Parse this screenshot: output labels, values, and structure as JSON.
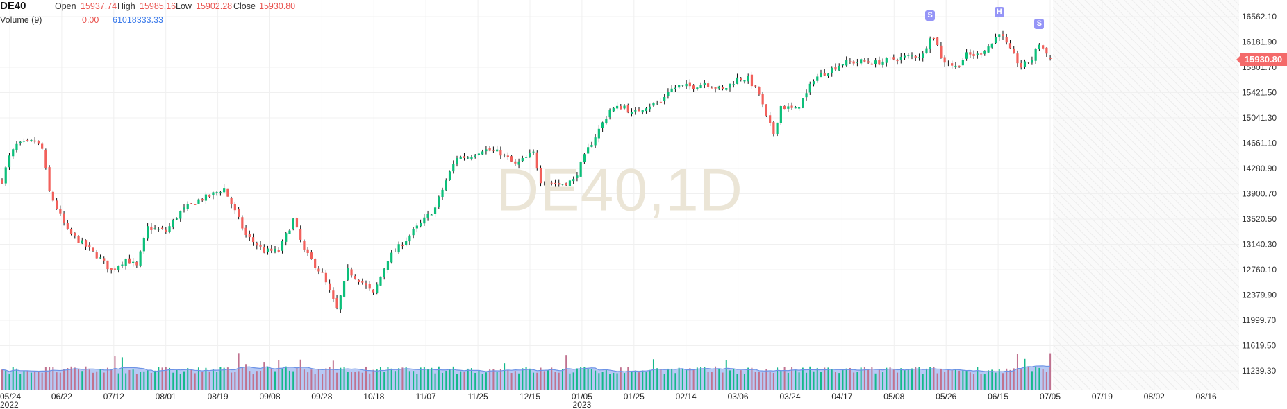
{
  "legend": {
    "symbol": "DE40",
    "open_label": "Open",
    "open": "15937.74",
    "high_label": "High",
    "high": "15985.16",
    "low_label": "Low",
    "low": "15902.28",
    "close_label": "Close",
    "close": "15930.80",
    "volume_label": "Volume (9)",
    "volume_value": "0.00",
    "volume_ma": "61018333.33"
  },
  "watermark": "DE40,1D",
  "last_price_tag": "15930.80",
  "markers": [
    {
      "label": "S",
      "day": 255,
      "price": 16279
    },
    {
      "label": "H",
      "day": 274,
      "price": 16338
    },
    {
      "label": "S",
      "day": 285,
      "price": 16161
    }
  ],
  "colors": {
    "up": "#0cbf7a",
    "down": "#f2605b",
    "vol_up": "#14b98a",
    "vol_down": "#c0728f",
    "vol_ma_fill": "#b7c9f4",
    "vol_ma_line": "#6d93e6",
    "tag": "#f46a6a",
    "marker": "#9595f7"
  },
  "chart_data": {
    "type": "candlestick",
    "title": "DE40,1D",
    "y_ticks": [
      "16562.10",
      "16181.90",
      "15801.70",
      "15421.50",
      "15041.30",
      "14661.10",
      "14280.90",
      "13900.70",
      "13520.50",
      "13140.30",
      "12760.10",
      "12379.90",
      "11999.70",
      "11619.50",
      "11239.30"
    ],
    "ylim": [
      11239.3,
      16562.1
    ],
    "x_ticks": [
      {
        "label": "05/24",
        "sub": "2022"
      },
      {
        "label": "06/22"
      },
      {
        "label": "07/12"
      },
      {
        "label": "08/01"
      },
      {
        "label": "08/19"
      },
      {
        "label": "09/08"
      },
      {
        "label": "09/28"
      },
      {
        "label": "10/18"
      },
      {
        "label": "11/07"
      },
      {
        "label": "11/25"
      },
      {
        "label": "12/15"
      },
      {
        "label": "01/05",
        "sub": "2023"
      },
      {
        "label": "01/25"
      },
      {
        "label": "02/14"
      },
      {
        "label": "03/06"
      },
      {
        "label": "03/24"
      },
      {
        "label": "04/17"
      },
      {
        "label": "05/08"
      },
      {
        "label": "05/26"
      },
      {
        "label": "06/15"
      },
      {
        "label": "07/05"
      },
      {
        "label": "07/19"
      },
      {
        "label": "08/02"
      },
      {
        "label": "08/16"
      }
    ],
    "num_days": 289,
    "close_knots": [
      [
        0,
        14100
      ],
      [
        2,
        14453
      ],
      [
        4,
        14630
      ],
      [
        9,
        14690
      ],
      [
        11,
        14570
      ],
      [
        13,
        13923
      ],
      [
        15,
        13688
      ],
      [
        18,
        13335
      ],
      [
        22,
        13158
      ],
      [
        27,
        12922
      ],
      [
        30,
        12745
      ],
      [
        34,
        12922
      ],
      [
        37,
        12804
      ],
      [
        40,
        13393
      ],
      [
        45,
        13335
      ],
      [
        49,
        13629
      ],
      [
        54,
        13806
      ],
      [
        57,
        13865
      ],
      [
        61,
        13983
      ],
      [
        63,
        13747
      ],
      [
        67,
        13275
      ],
      [
        72,
        13040
      ],
      [
        76,
        13040
      ],
      [
        80,
        13511
      ],
      [
        83,
        13040
      ],
      [
        88,
        12686
      ],
      [
        92,
        12156
      ],
      [
        95,
        12745
      ],
      [
        99,
        12568
      ],
      [
        102,
        12392
      ],
      [
        106,
        12922
      ],
      [
        110,
        13158
      ],
      [
        114,
        13393
      ],
      [
        119,
        13688
      ],
      [
        122,
        14100
      ],
      [
        125,
        14453
      ],
      [
        128,
        14453
      ],
      [
        132,
        14571
      ],
      [
        137,
        14512
      ],
      [
        141,
        14335
      ],
      [
        146,
        14512
      ],
      [
        148,
        14100
      ],
      [
        153,
        14041
      ],
      [
        157,
        14100
      ],
      [
        161,
        14571
      ],
      [
        164,
        14865
      ],
      [
        167,
        15160
      ],
      [
        171,
        15219
      ],
      [
        173,
        15101
      ],
      [
        177,
        15219
      ],
      [
        181,
        15278
      ],
      [
        183,
        15455
      ],
      [
        186,
        15514
      ],
      [
        190,
        15514
      ],
      [
        193,
        15572
      ],
      [
        198,
        15455
      ],
      [
        202,
        15631
      ],
      [
        205,
        15631
      ],
      [
        208,
        15396
      ],
      [
        210,
        15042
      ],
      [
        212,
        14807
      ],
      [
        214,
        15219
      ],
      [
        218,
        15160
      ],
      [
        221,
        15396
      ],
      [
        223,
        15631
      ],
      [
        227,
        15749
      ],
      [
        231,
        15867
      ],
      [
        236,
        15890
      ],
      [
        240,
        15867
      ],
      [
        245,
        15926
      ],
      [
        249,
        15961
      ],
      [
        253,
        15985
      ],
      [
        255,
        16279
      ],
      [
        257,
        16161
      ],
      [
        258,
        15926
      ],
      [
        262,
        15808
      ],
      [
        265,
        15985
      ],
      [
        268,
        15985
      ],
      [
        272,
        16161
      ],
      [
        274,
        16338
      ],
      [
        277,
        16044
      ],
      [
        280,
        15808
      ],
      [
        283,
        15926
      ],
      [
        285,
        16161
      ],
      [
        288,
        15930.8
      ]
    ],
    "last_candle": {
      "open": 15937.74,
      "high": 15985.16,
      "low": 15902.28,
      "close": 15930.8
    },
    "volume_ma_period": 9,
    "volume_ma_last": 61018333.33
  }
}
